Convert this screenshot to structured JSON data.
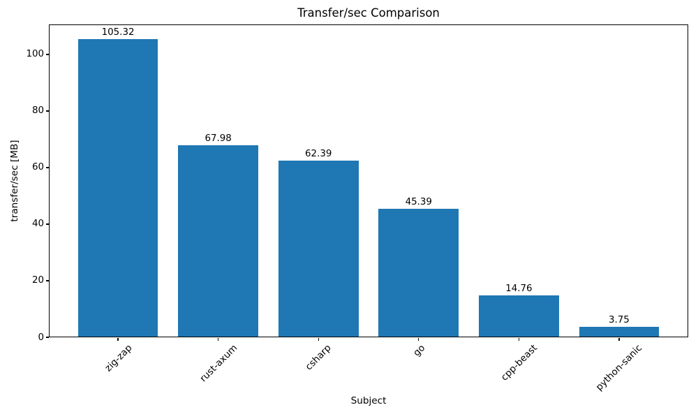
{
  "figure": {
    "background": "#ffffff",
    "text_color": "#000000"
  },
  "chart_data": {
    "type": "bar",
    "title": "Transfer/sec Comparison",
    "xlabel": "Subject",
    "ylabel": "transfer/sec [MB]",
    "categories": [
      "zig-zap",
      "rust-axum",
      "csharp",
      "go",
      "cpp-beast",
      "python-sanic"
    ],
    "values": [
      105.32,
      67.98,
      62.39,
      45.39,
      14.76,
      3.75
    ],
    "bar_labels": [
      "105.32",
      "67.98",
      "62.39",
      "45.39",
      "14.76",
      "3.75"
    ],
    "bar_color": "#1f77b4",
    "ylim": [
      0,
      110.59
    ],
    "yticks": [
      0,
      20,
      40,
      60,
      80,
      100
    ],
    "grid": false,
    "legend": null,
    "x_tick_rotation_deg": 45
  }
}
